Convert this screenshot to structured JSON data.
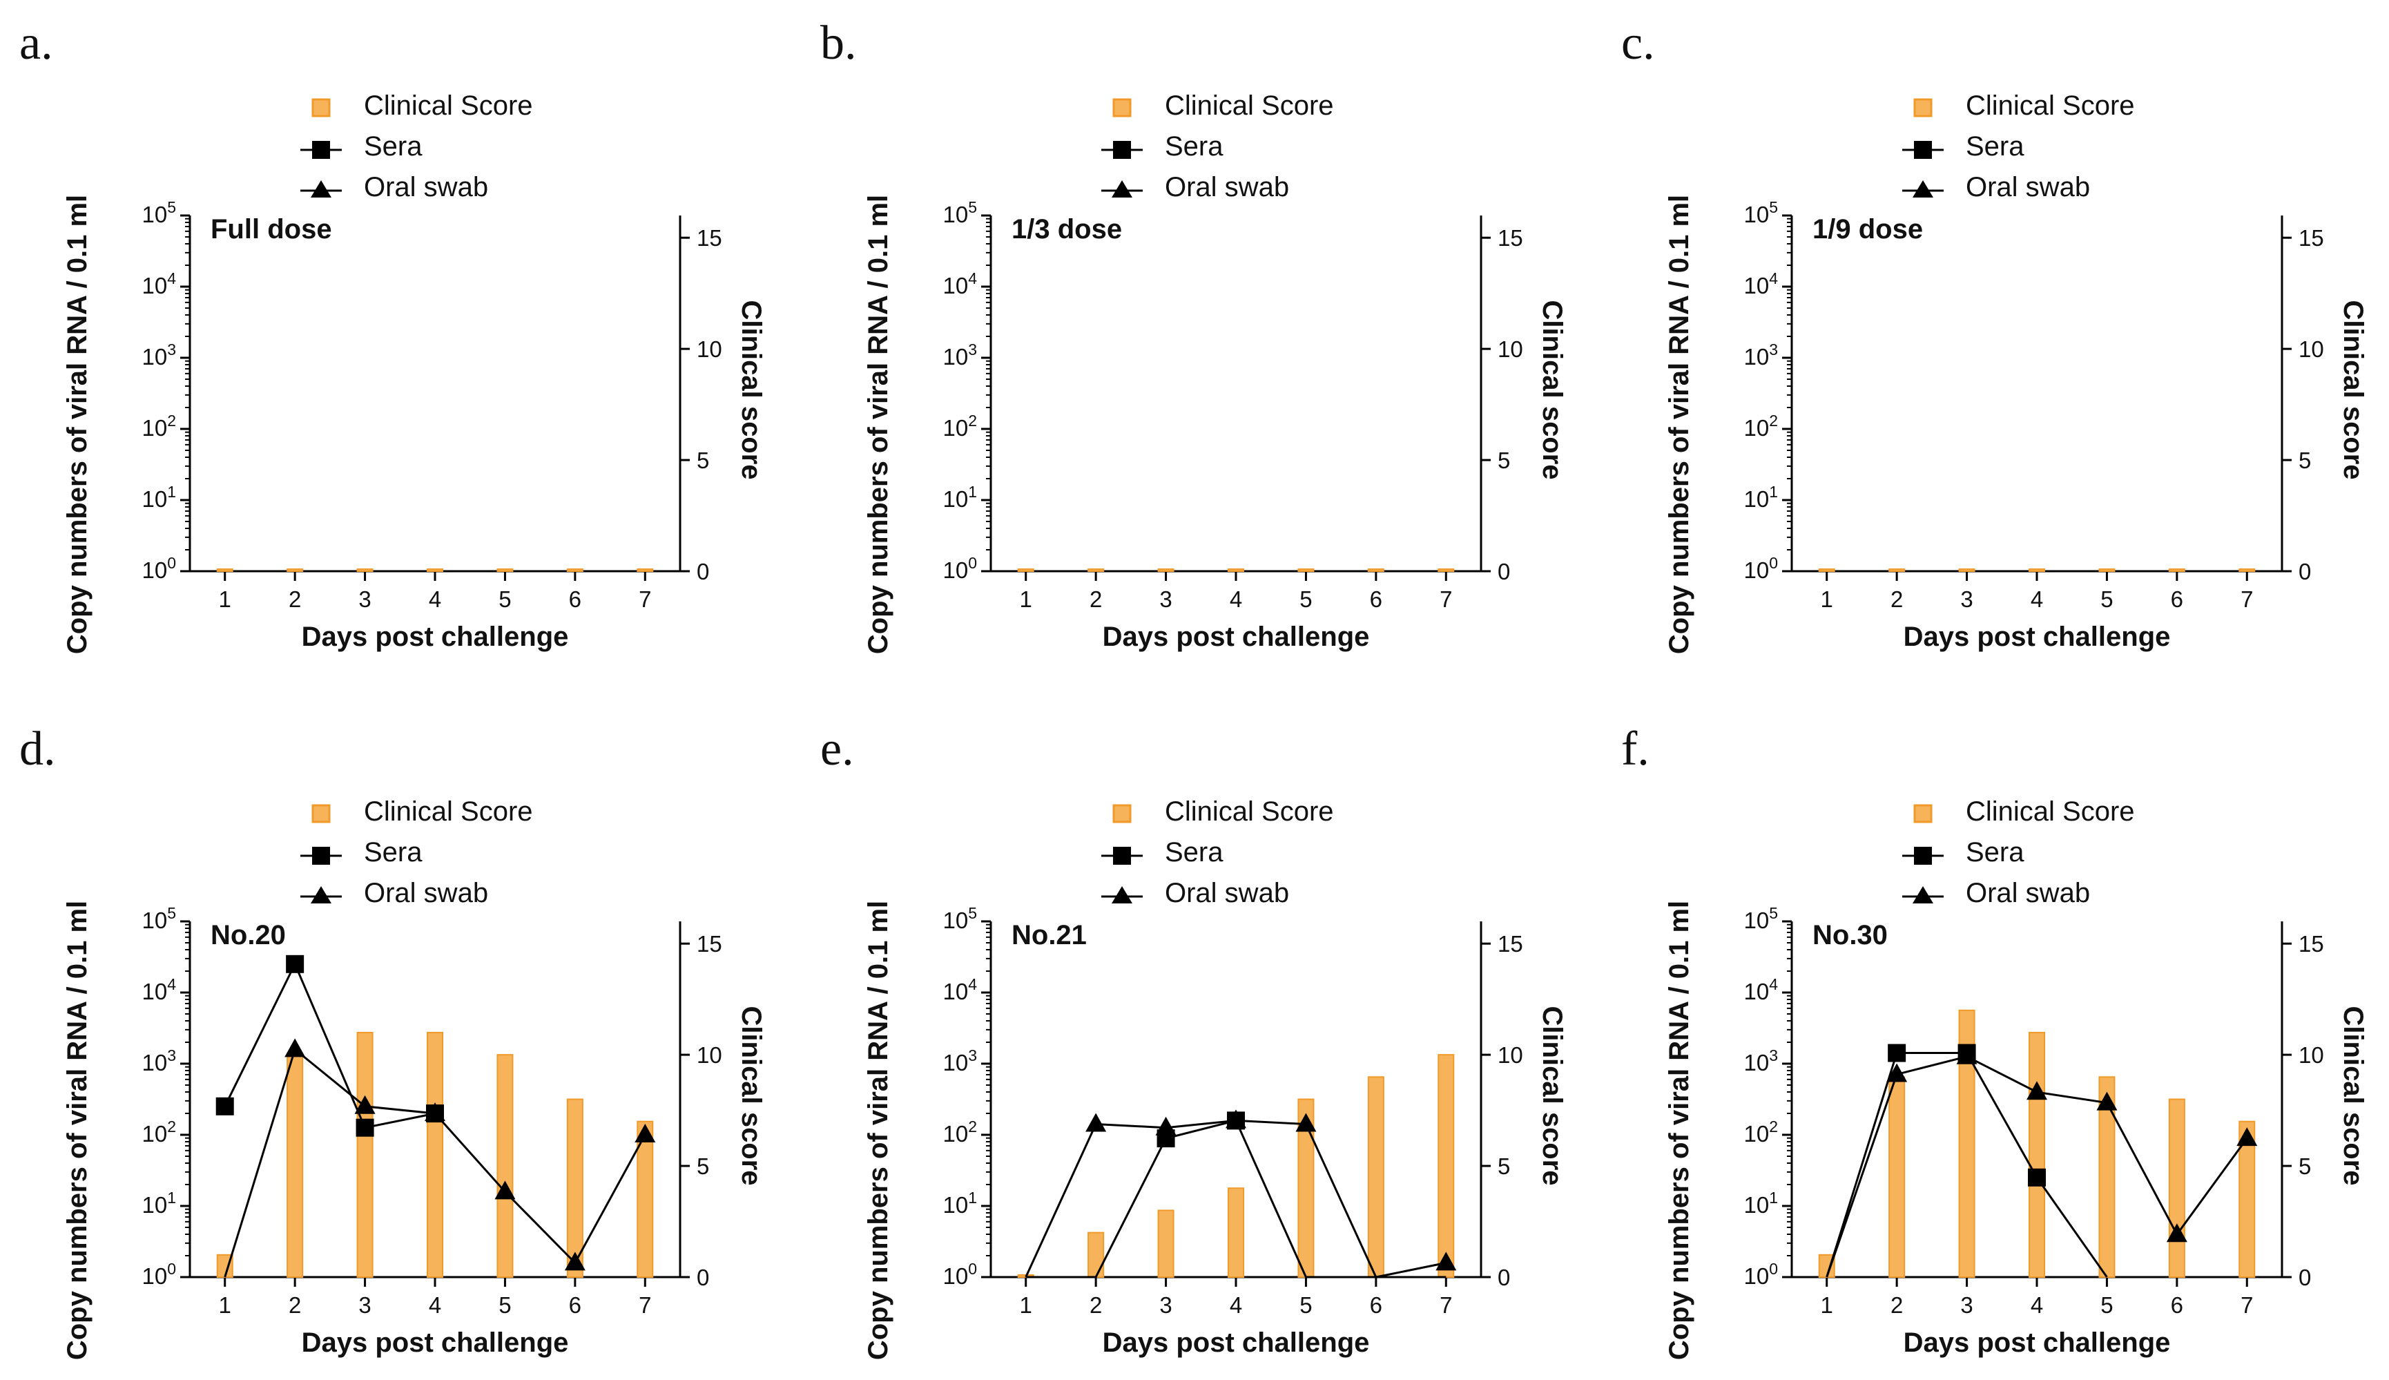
{
  "colors": {
    "bar": "#f7b35a",
    "bar_edge": "#f09a2a",
    "line": "#000000"
  },
  "chart_data": [
    {
      "panel": "a.",
      "label": "Full dose",
      "type": "bar+line",
      "legend": [
        "Clinical Score",
        "Sera",
        "Oral swab"
      ],
      "x": [
        1,
        2,
        3,
        4,
        5,
        6,
        7
      ],
      "xlabel": "Days post challenge",
      "ylabel_left": "Copy numbers of viral RNA / 0.1 ml",
      "ylabel_right": "Clinical score",
      "yticks_left": [
        [
          "10",
          "0"
        ],
        [
          "10",
          "1"
        ],
        [
          "10",
          "2"
        ],
        [
          "10",
          "3"
        ],
        [
          "10",
          "4"
        ],
        [
          "10",
          "5"
        ]
      ],
      "yticks_right": [
        "0",
        "5",
        "10",
        "15"
      ],
      "ylim_left_log10": [
        0,
        5
      ],
      "ylim_right": [
        0,
        16
      ],
      "clinical_score": [
        0,
        0,
        0,
        0,
        0,
        0,
        0
      ],
      "sera_log10": [
        null,
        null,
        null,
        null,
        null,
        null,
        null
      ],
      "oral_swab_log10": [
        null,
        null,
        null,
        null,
        null,
        null,
        null
      ]
    },
    {
      "panel": "b.",
      "label": "1/3 dose",
      "type": "bar+line",
      "legend": [
        "Clinical Score",
        "Sera",
        "Oral swab"
      ],
      "x": [
        1,
        2,
        3,
        4,
        5,
        6,
        7
      ],
      "xlabel": "Days post challenge",
      "ylabel_left": "Copy numbers of viral RNA / 0.1 ml",
      "ylabel_right": "Clinical score",
      "yticks_left": [
        [
          "10",
          "0"
        ],
        [
          "10",
          "1"
        ],
        [
          "10",
          "2"
        ],
        [
          "10",
          "3"
        ],
        [
          "10",
          "4"
        ],
        [
          "10",
          "5"
        ]
      ],
      "yticks_right": [
        "0",
        "5",
        "10",
        "15"
      ],
      "ylim_left_log10": [
        0,
        5
      ],
      "ylim_right": [
        0,
        16
      ],
      "clinical_score": [
        0,
        0,
        0,
        0,
        0,
        0,
        0
      ],
      "sera_log10": [
        null,
        null,
        null,
        null,
        null,
        null,
        null
      ],
      "oral_swab_log10": [
        null,
        null,
        null,
        null,
        null,
        null,
        null
      ]
    },
    {
      "panel": "c.",
      "label": "1/9 dose",
      "type": "bar+line",
      "legend": [
        "Clinical Score",
        "Sera",
        "Oral swab"
      ],
      "x": [
        1,
        2,
        3,
        4,
        5,
        6,
        7
      ],
      "xlabel": "Days post challenge",
      "ylabel_left": "Copy numbers of viral RNA / 0.1 ml",
      "ylabel_right": "Clinical score",
      "yticks_left": [
        [
          "10",
          "0"
        ],
        [
          "10",
          "1"
        ],
        [
          "10",
          "2"
        ],
        [
          "10",
          "3"
        ],
        [
          "10",
          "4"
        ],
        [
          "10",
          "5"
        ]
      ],
      "yticks_right": [
        "0",
        "5",
        "10",
        "15"
      ],
      "ylim_left_log10": [
        0,
        5
      ],
      "ylim_right": [
        0,
        16
      ],
      "clinical_score": [
        0,
        0,
        0,
        0,
        0,
        0,
        0
      ],
      "sera_log10": [
        null,
        null,
        null,
        null,
        null,
        null,
        null
      ],
      "oral_swab_log10": [
        null,
        null,
        null,
        null,
        null,
        null,
        null
      ]
    },
    {
      "panel": "d.",
      "label": "No.20",
      "type": "bar+line",
      "legend": [
        "Clinical Score",
        "Sera",
        "Oral swab"
      ],
      "x": [
        1,
        2,
        3,
        4,
        5,
        6,
        7
      ],
      "xlabel": "Days post challenge",
      "ylabel_left": "Copy numbers of viral RNA / 0.1 ml",
      "ylabel_right": "Clinical score",
      "yticks_left": [
        [
          "10",
          "0"
        ],
        [
          "10",
          "1"
        ],
        [
          "10",
          "2"
        ],
        [
          "10",
          "3"
        ],
        [
          "10",
          "4"
        ],
        [
          "10",
          "5"
        ]
      ],
      "yticks_right": [
        "0",
        "5",
        "10",
        "15"
      ],
      "ylim_left_log10": [
        0,
        5
      ],
      "ylim_right": [
        0,
        16
      ],
      "clinical_score": [
        1,
        10,
        11,
        11,
        10,
        8,
        7
      ],
      "sera_log10": [
        2.4,
        4.4,
        2.1,
        2.3,
        null,
        null,
        null
      ],
      "oral_swab_log10": [
        0,
        3.2,
        2.4,
        2.3,
        1.2,
        0.2,
        2.0
      ],
      "line_from_zero_sera": true
    },
    {
      "panel": "e.",
      "label": "No.21",
      "type": "bar+line",
      "legend": [
        "Clinical Score",
        "Sera",
        "Oral swab"
      ],
      "x": [
        1,
        2,
        3,
        4,
        5,
        6,
        7
      ],
      "xlabel": "Days post challenge",
      "ylabel_left": "Copy numbers of viral RNA / 0.1 ml",
      "ylabel_right": "Clinical score",
      "yticks_left": [
        [
          "10",
          "0"
        ],
        [
          "10",
          "1"
        ],
        [
          "10",
          "2"
        ],
        [
          "10",
          "3"
        ],
        [
          "10",
          "4"
        ],
        [
          "10",
          "5"
        ]
      ],
      "yticks_right": [
        "0",
        "5",
        "10",
        "15"
      ],
      "ylim_left_log10": [
        0,
        5
      ],
      "ylim_right": [
        0,
        16
      ],
      "clinical_score": [
        0,
        2,
        3,
        4,
        8,
        9,
        10
      ],
      "sera_log10": [
        0,
        0,
        1.95,
        2.2,
        0,
        0,
        0
      ],
      "oral_swab_log10": [
        0,
        2.15,
        2.1,
        2.2,
        2.15,
        0,
        0.2
      ]
    },
    {
      "panel": "f.",
      "label": "No.30",
      "type": "bar+line",
      "legend": [
        "Clinical Score",
        "Sera",
        "Oral swab"
      ],
      "x": [
        1,
        2,
        3,
        4,
        5,
        6,
        7
      ],
      "xlabel": "Days post challenge",
      "ylabel_left": "Copy numbers of viral RNA / 0.1 ml",
      "ylabel_right": "Clinical score",
      "yticks_left": [
        [
          "10",
          "0"
        ],
        [
          "10",
          "1"
        ],
        [
          "10",
          "2"
        ],
        [
          "10",
          "3"
        ],
        [
          "10",
          "4"
        ],
        [
          "10",
          "5"
        ]
      ],
      "yticks_right": [
        "0",
        "5",
        "10",
        "15"
      ],
      "ylim_left_log10": [
        0,
        5
      ],
      "ylim_right": [
        0,
        16
      ],
      "clinical_score": [
        1,
        9,
        12,
        11,
        9,
        8,
        7
      ],
      "sera_log10": [
        0,
        3.15,
        3.15,
        1.4,
        0,
        null,
        null
      ],
      "oral_swab_log10": [
        0,
        2.85,
        3.1,
        2.6,
        2.45,
        0.6,
        1.95
      ]
    }
  ]
}
